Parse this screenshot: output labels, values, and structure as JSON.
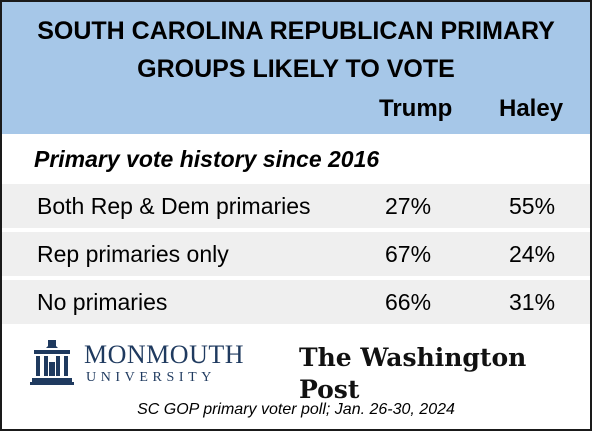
{
  "title": {
    "line1": "SOUTH CAROLINA REPUBLICAN PRIMARY",
    "line2": "GROUPS LIKELY TO VOTE"
  },
  "columns": [
    "Trump",
    "Haley"
  ],
  "section_label": "Primary vote history since 2016",
  "rows": [
    {
      "label": "Both Rep & Dem primaries",
      "trump": "27%",
      "haley": "55%"
    },
    {
      "label": "Rep primaries only",
      "trump": "67%",
      "haley": "24%"
    },
    {
      "label": "No primaries",
      "trump": "66%",
      "haley": "31%"
    }
  ],
  "logos": {
    "monmouth_name": "MONMOUTH",
    "monmouth_sub": "UNIVERSITY",
    "wapo": "The Washington Post"
  },
  "footer": "SC GOP primary voter poll;  Jan. 26-30, 2024",
  "colors": {
    "header_bg": "#a6c7e8",
    "row_bg": "#efefef",
    "monmouth_blue": "#1f3a5f"
  },
  "chart_data": {
    "type": "table",
    "title": "SOUTH CAROLINA REPUBLICAN PRIMARY GROUPS LIKELY TO VOTE",
    "columns": [
      "Trump",
      "Haley"
    ],
    "group": "Primary vote history since 2016",
    "categories": [
      "Both Rep & Dem primaries",
      "Rep primaries only",
      "No primaries"
    ],
    "series": [
      {
        "name": "Trump",
        "values": [
          27,
          67,
          66
        ]
      },
      {
        "name": "Haley",
        "values": [
          55,
          24,
          31
        ]
      }
    ],
    "unit": "%"
  }
}
